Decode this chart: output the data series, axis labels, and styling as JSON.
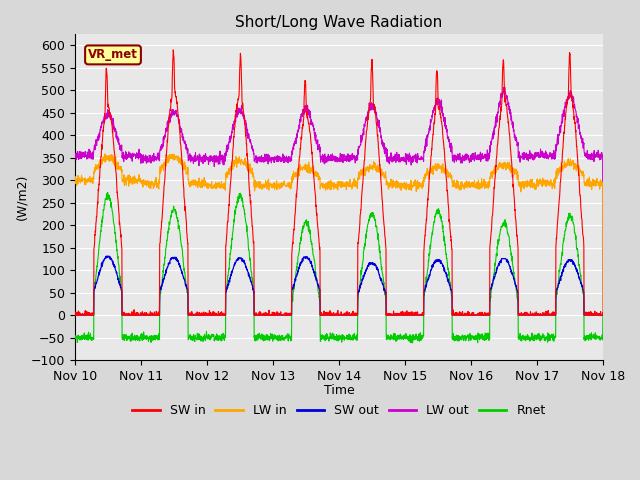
{
  "title": "Short/Long Wave Radiation",
  "ylabel": "(W/m2)",
  "xlabel": "Time",
  "ylim": [
    -100,
    625
  ],
  "yticks": [
    -100,
    -50,
    0,
    50,
    100,
    150,
    200,
    250,
    300,
    350,
    400,
    450,
    500,
    550,
    600
  ],
  "annotation_label": "VR_met",
  "colors": {
    "SW_in": "#ff0000",
    "LW_in": "#ffa500",
    "SW_out": "#0000dd",
    "LW_out": "#cc00cc",
    "Rnet": "#00cc00"
  },
  "legend_labels": [
    "SW in",
    "LW in",
    "SW out",
    "LW out",
    "Rnet"
  ],
  "bg_color": "#e8e8e8",
  "grid_color": "#ffffff",
  "n_days": 8,
  "start_day": 10,
  "points_per_day": 288
}
